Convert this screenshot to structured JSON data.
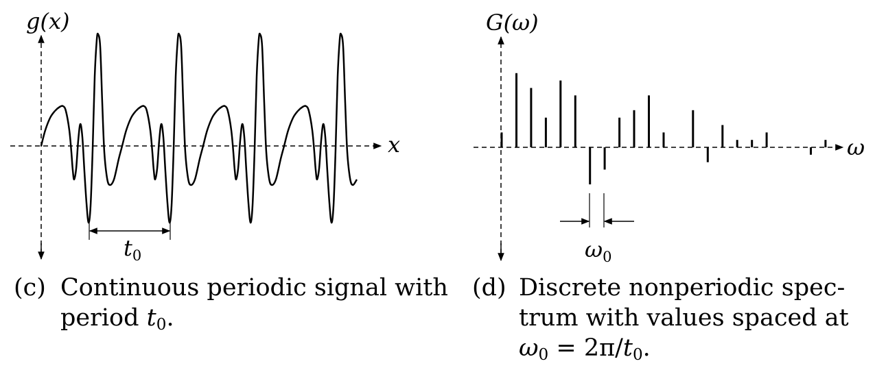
{
  "panel_c": {
    "y_axis_label": "g(x)",
    "x_axis_label": "x",
    "period_label": "t",
    "period_label_sub": "0",
    "caption_tag": "(c)",
    "caption_line1": "Continuous periodic signal with",
    "caption_line2_text": "period ",
    "caption_line2_var": "t",
    "caption_line2_sub": "0",
    "caption_line2_end": "."
  },
  "panel_d": {
    "y_axis_label": "G(ω)",
    "x_axis_label": "ω",
    "spacing_label": "ω",
    "spacing_label_sub": "0",
    "caption_tag": "(d)",
    "caption_line1": "Discrete nonperiodic spec-",
    "caption_line2": "trum with values spaced at",
    "caption_line3_var": "ω",
    "caption_line3_sub": "0",
    "caption_line3_rest": " = 2π/",
    "caption_line3_var2": "t",
    "caption_line3_sub2": "0",
    "caption_line3_end": "."
  },
  "chart_data": {
    "type": "bar",
    "title": "",
    "xlabel": "ω",
    "ylabel": "G(ω)",
    "spacing": "ω0",
    "values": [
      0.38,
      1.9,
      1.52,
      0.76,
      1.71,
      1.33,
      -0.95,
      -0.57,
      0.76,
      0.95,
      1.33,
      0.38,
      0,
      0.95,
      -0.38,
      0.57,
      0.19,
      0.19,
      0.38,
      0,
      0,
      -0.19,
      0.19
    ]
  }
}
